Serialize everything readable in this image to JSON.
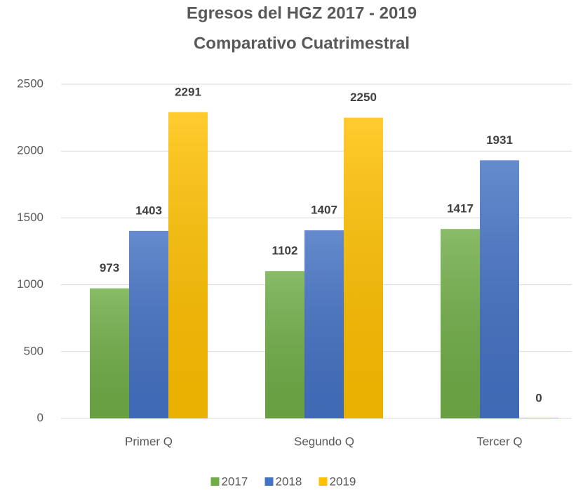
{
  "chart_data": {
    "type": "bar",
    "title": "Egresos del  HGZ 2017 - 2019",
    "subtitle": "Comparativo Cuatrimestral",
    "categories": [
      "Primer Q",
      "Segundo Q",
      "Tercer Q"
    ],
    "series": [
      {
        "name": "2017",
        "color": "#70ad47",
        "values": [
          973,
          1102,
          1417
        ]
      },
      {
        "name": "2018",
        "color": "#4472c4",
        "values": [
          1403,
          1407,
          1931
        ]
      },
      {
        "name": "2019",
        "color": "#ffc000",
        "values": [
          2291,
          2250,
          0
        ]
      }
    ],
    "ylim": [
      0,
      2500
    ],
    "yticks": [
      0,
      500,
      1000,
      1500,
      2000,
      2500
    ],
    "grid": true,
    "legend": "bottom"
  }
}
